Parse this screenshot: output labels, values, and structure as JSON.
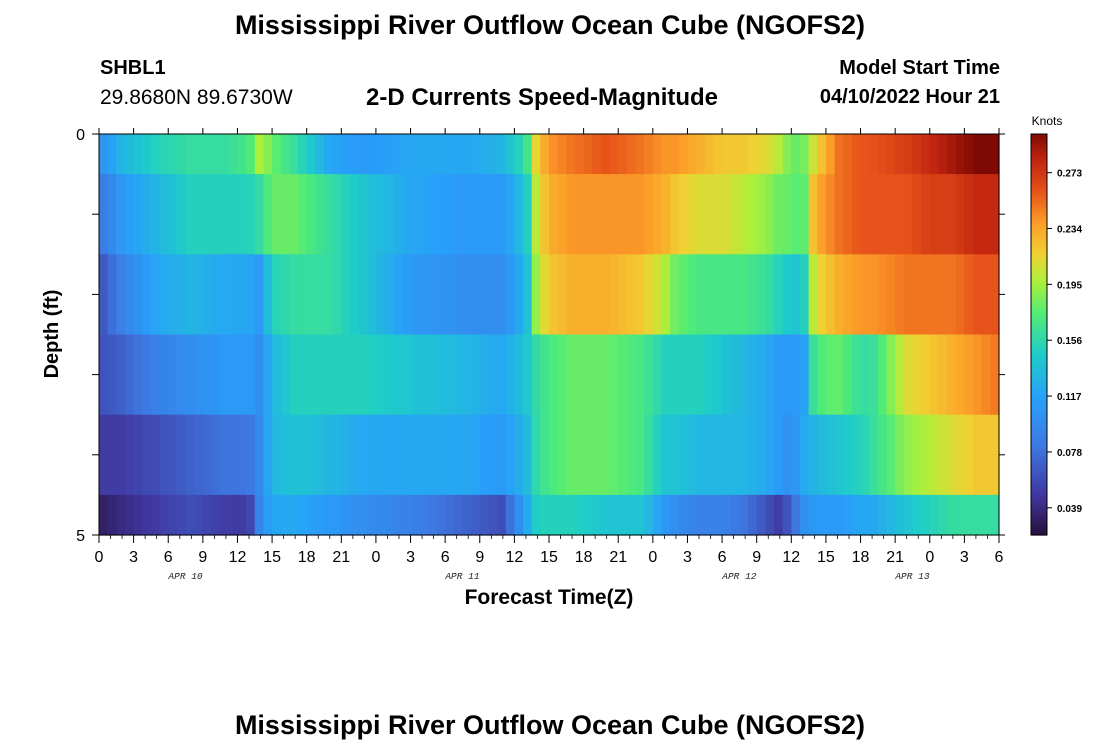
{
  "page": {
    "title_top": "Mississippi River Outflow Ocean Cube (NGOFS2)",
    "title_bottom": "Mississippi River Outflow Ocean Cube (NGOFS2)",
    "station_id": "SHBL1",
    "station_coords": "29.8680N  89.6730W",
    "subtitle": "2-D Currents Speed-Magnitude",
    "model_start_label": "Model Start Time",
    "model_start_value": "04/10/2022 Hour 21"
  },
  "chart_data": {
    "type": "heatmap",
    "title": "2-D Currents Speed-Magnitude",
    "xlabel": "Forecast Time(Z)",
    "ylabel": "Depth (ft)",
    "colorbar_label": "Knots",
    "x_tick_labels": [
      "0",
      "3",
      "6",
      "9",
      "12",
      "15",
      "18",
      "21",
      "0",
      "3",
      "6",
      "9",
      "12",
      "15",
      "18",
      "21",
      "0",
      "3",
      "6",
      "9",
      "12",
      "15",
      "18",
      "21",
      "0",
      "3",
      "6"
    ],
    "date_labels": [
      "APR 10",
      "APR 11",
      "APR 12",
      "APR 13"
    ],
    "date_label_hours": [
      15,
      63,
      111,
      141
    ],
    "y_tick_labels": [
      "0",
      "5"
    ],
    "ylim": [
      0,
      5
    ],
    "xlim_hours": [
      0,
      78
    ],
    "colorbar_ticks": [
      0.039,
      0.078,
      0.117,
      0.156,
      0.195,
      0.234,
      0.273
    ],
    "colorbar_range": [
      0.02,
      0.3
    ],
    "layer_hours": [
      0,
      2,
      5,
      8,
      11,
      13,
      14,
      15,
      17,
      20,
      23,
      27,
      32,
      35,
      37,
      38,
      39,
      41,
      44,
      47,
      49,
      50,
      52,
      54,
      56,
      58,
      59,
      60,
      61,
      62,
      64,
      66,
      67,
      70,
      72,
      74,
      76,
      78
    ],
    "layers": [
      {
        "depth": [
          0,
          0.5
        ],
        "values": [
          0.1,
          0.13,
          0.15,
          0.16,
          0.16,
          0.17,
          0.2,
          0.18,
          0.16,
          0.12,
          0.11,
          0.12,
          0.12,
          0.13,
          0.16,
          0.22,
          0.24,
          0.25,
          0.26,
          0.25,
          0.24,
          0.24,
          0.23,
          0.22,
          0.22,
          0.21,
          0.2,
          0.18,
          0.18,
          0.21,
          0.25,
          0.26,
          0.26,
          0.27,
          0.28,
          0.29,
          0.3,
          0.3
        ]
      },
      {
        "depth": [
          0.5,
          1.5
        ],
        "values": [
          0.08,
          0.11,
          0.13,
          0.15,
          0.15,
          0.15,
          0.16,
          0.18,
          0.18,
          0.16,
          0.14,
          0.12,
          0.11,
          0.11,
          0.14,
          0.21,
          0.23,
          0.24,
          0.24,
          0.24,
          0.23,
          0.22,
          0.21,
          0.21,
          0.2,
          0.19,
          0.18,
          0.18,
          0.17,
          0.23,
          0.25,
          0.26,
          0.26,
          0.26,
          0.27,
          0.27,
          0.28,
          0.28
        ]
      },
      {
        "depth": [
          1.5,
          2.5
        ],
        "values": [
          0.06,
          0.09,
          0.12,
          0.13,
          0.12,
          0.12,
          0.11,
          0.15,
          0.16,
          0.16,
          0.14,
          0.11,
          0.1,
          0.1,
          0.13,
          0.2,
          0.22,
          0.23,
          0.23,
          0.22,
          0.2,
          0.18,
          0.17,
          0.17,
          0.17,
          0.16,
          0.15,
          0.14,
          0.14,
          0.21,
          0.23,
          0.24,
          0.24,
          0.25,
          0.25,
          0.25,
          0.26,
          0.26
        ]
      },
      {
        "depth": [
          2.5,
          3.5
        ],
        "values": [
          0.06,
          0.07,
          0.09,
          0.1,
          0.11,
          0.11,
          0.1,
          0.13,
          0.15,
          0.15,
          0.15,
          0.14,
          0.13,
          0.12,
          0.14,
          0.16,
          0.17,
          0.18,
          0.18,
          0.17,
          0.15,
          0.15,
          0.15,
          0.14,
          0.13,
          0.12,
          0.11,
          0.11,
          0.11,
          0.17,
          0.18,
          0.16,
          0.16,
          0.21,
          0.22,
          0.23,
          0.24,
          0.25
        ]
      },
      {
        "depth": [
          3.5,
          4.5
        ],
        "values": [
          0.05,
          0.05,
          0.06,
          0.07,
          0.08,
          0.08,
          0.1,
          0.13,
          0.14,
          0.13,
          0.12,
          0.12,
          0.12,
          0.11,
          0.13,
          0.16,
          0.17,
          0.18,
          0.18,
          0.17,
          0.14,
          0.14,
          0.13,
          0.13,
          0.13,
          0.12,
          0.11,
          0.1,
          0.12,
          0.13,
          0.14,
          0.15,
          0.16,
          0.19,
          0.2,
          0.21,
          0.22,
          0.22
        ]
      },
      {
        "depth": [
          4.5,
          5
        ],
        "values": [
          0.03,
          0.04,
          0.05,
          0.06,
          0.05,
          0.05,
          0.1,
          0.12,
          0.12,
          0.11,
          0.1,
          0.09,
          0.07,
          0.06,
          0.12,
          0.15,
          0.15,
          0.15,
          0.14,
          0.14,
          0.11,
          0.1,
          0.09,
          0.09,
          0.08,
          0.06,
          0.05,
          0.07,
          0.1,
          0.11,
          0.11,
          0.12,
          0.12,
          0.14,
          0.15,
          0.16,
          0.16,
          0.16
        ]
      }
    ]
  }
}
